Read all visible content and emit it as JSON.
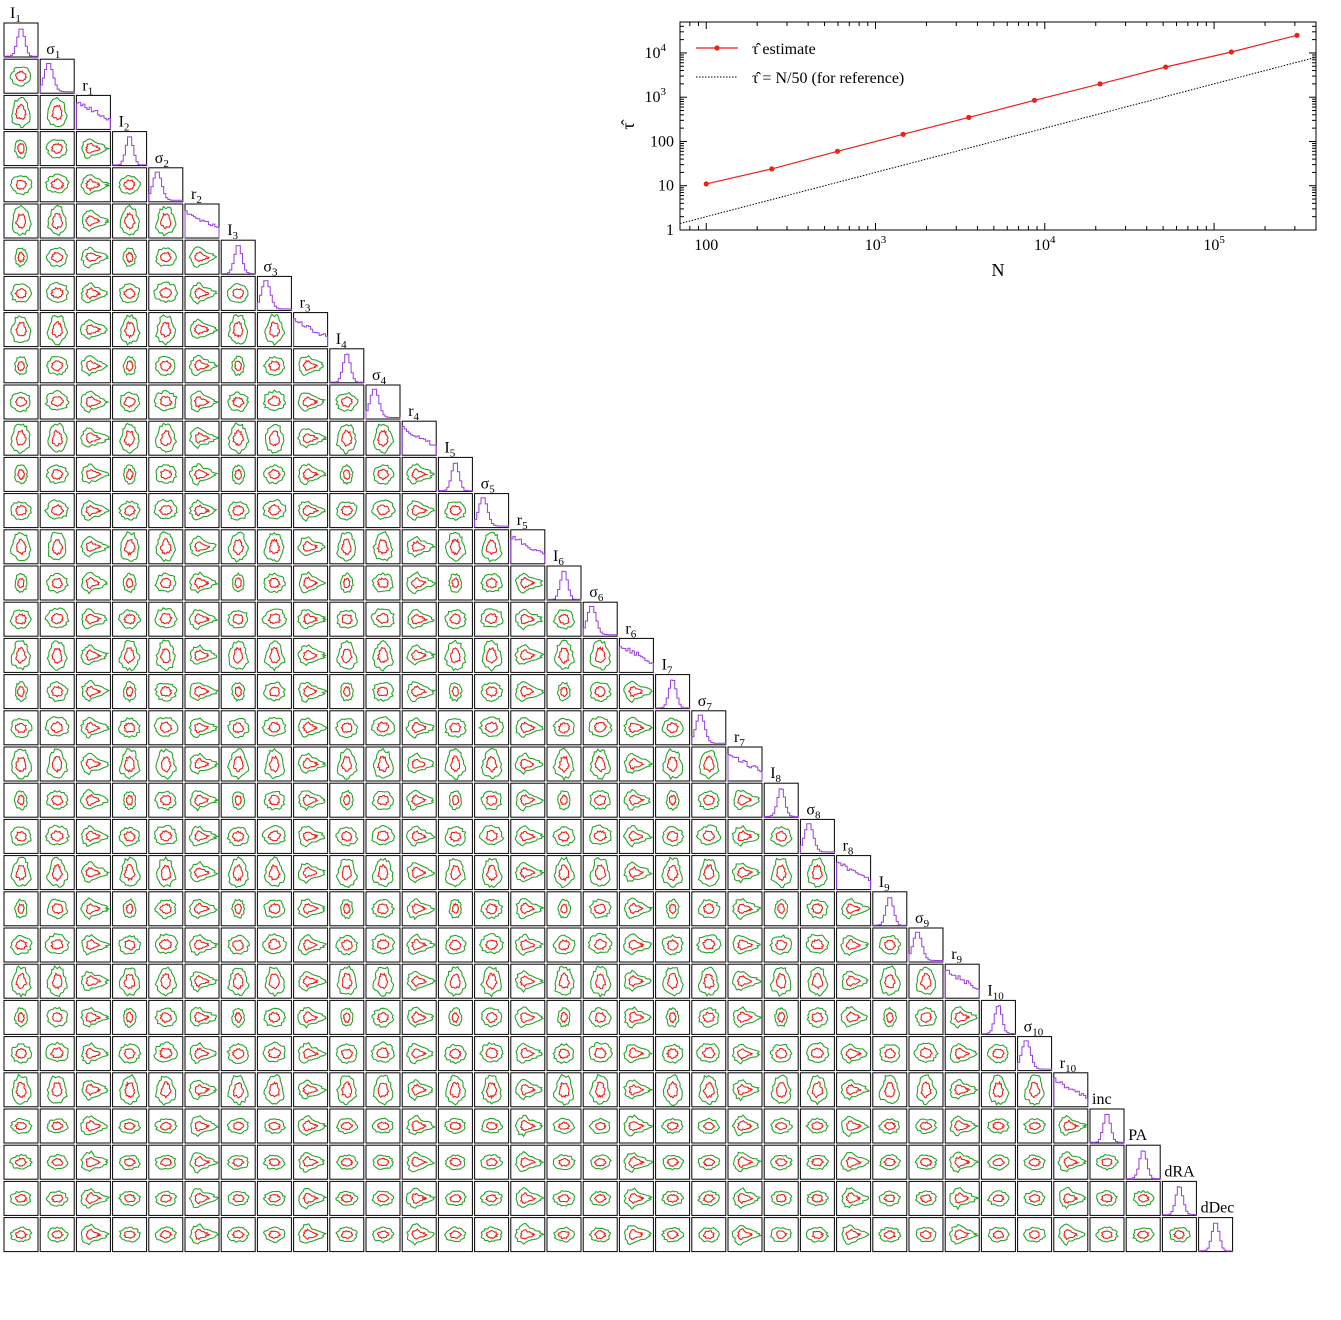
{
  "parameters": [
    {
      "base": "I",
      "sub": "1",
      "kind": "I"
    },
    {
      "base": "σ",
      "sub": "1",
      "kind": "s"
    },
    {
      "base": "r",
      "sub": "1",
      "kind": "r"
    },
    {
      "base": "I",
      "sub": "2",
      "kind": "I"
    },
    {
      "base": "σ",
      "sub": "2",
      "kind": "s"
    },
    {
      "base": "r",
      "sub": "2",
      "kind": "r"
    },
    {
      "base": "I",
      "sub": "3",
      "kind": "I"
    },
    {
      "base": "σ",
      "sub": "3",
      "kind": "s"
    },
    {
      "base": "r",
      "sub": "3",
      "kind": "r"
    },
    {
      "base": "I",
      "sub": "4",
      "kind": "I"
    },
    {
      "base": "σ",
      "sub": "4",
      "kind": "s"
    },
    {
      "base": "r",
      "sub": "4",
      "kind": "r"
    },
    {
      "base": "I",
      "sub": "5",
      "kind": "I"
    },
    {
      "base": "σ",
      "sub": "5",
      "kind": "s"
    },
    {
      "base": "r",
      "sub": "5",
      "kind": "r"
    },
    {
      "base": "I",
      "sub": "6",
      "kind": "I"
    },
    {
      "base": "σ",
      "sub": "6",
      "kind": "s"
    },
    {
      "base": "r",
      "sub": "6",
      "kind": "r"
    },
    {
      "base": "I",
      "sub": "7",
      "kind": "I"
    },
    {
      "base": "σ",
      "sub": "7",
      "kind": "s"
    },
    {
      "base": "r",
      "sub": "7",
      "kind": "r"
    },
    {
      "base": "I",
      "sub": "8",
      "kind": "I"
    },
    {
      "base": "σ",
      "sub": "8",
      "kind": "s"
    },
    {
      "base": "r",
      "sub": "8",
      "kind": "r"
    },
    {
      "base": "I",
      "sub": "9",
      "kind": "I"
    },
    {
      "base": "σ",
      "sub": "9",
      "kind": "s"
    },
    {
      "base": "r",
      "sub": "9",
      "kind": "r"
    },
    {
      "base": "I",
      "sub": "10",
      "kind": "I"
    },
    {
      "base": "σ",
      "sub": "10",
      "kind": "s"
    },
    {
      "base": "r",
      "sub": "10",
      "kind": "r"
    },
    {
      "base": "inc",
      "sub": "",
      "kind": "g"
    },
    {
      "base": "PA",
      "sub": "",
      "kind": "g"
    },
    {
      "base": "dRA",
      "sub": "",
      "kind": "g"
    },
    {
      "base": "dDec",
      "sub": "",
      "kind": "g"
    }
  ],
  "colors": {
    "hist": "#9a3ee0",
    "contour_inner": "#e8231a",
    "contour_outer": "#28a428",
    "panel_border": "#000000"
  },
  "chart_data": [
    {
      "type": "corner",
      "n_parameters": 34,
      "contour_levels": [
        "inner",
        "outer"
      ]
    },
    {
      "type": "line",
      "xlabel": "N",
      "ylabel": "τ̂",
      "xscale": "log",
      "yscale": "log",
      "xlim": [
        70,
        400000
      ],
      "ylim": [
        1,
        50000
      ],
      "xticks": [
        {
          "v": 100,
          "label": "100"
        },
        {
          "v": 1000,
          "label": "10",
          "sup": "3"
        },
        {
          "v": 10000,
          "label": "10",
          "sup": "4"
        },
        {
          "v": 100000,
          "label": "10",
          "sup": "5"
        }
      ],
      "yticks": [
        {
          "v": 1,
          "label": "1"
        },
        {
          "v": 10,
          "label": "10"
        },
        {
          "v": 100,
          "label": "100"
        },
        {
          "v": 1000,
          "label": "10",
          "sup": "3"
        },
        {
          "v": 10000,
          "label": "10",
          "sup": "4"
        }
      ],
      "legend_position": "top-left",
      "series": [
        {
          "name": "τ̂ estimate",
          "style": "solid-markers",
          "color": "#e8231a",
          "x": [
            100,
            244,
            596,
            1456,
            3556,
            8685,
            21210,
            51795,
            126485,
            308884
          ],
          "y": [
            11,
            24,
            60,
            145,
            350,
            850,
            2000,
            4800,
            10500,
            25000
          ]
        },
        {
          "name": "τ̂ = N/50 (for reference)",
          "style": "dotted",
          "color": "#000000",
          "x": [
            70,
            400000
          ],
          "y": [
            1.4,
            8000
          ]
        }
      ]
    }
  ]
}
